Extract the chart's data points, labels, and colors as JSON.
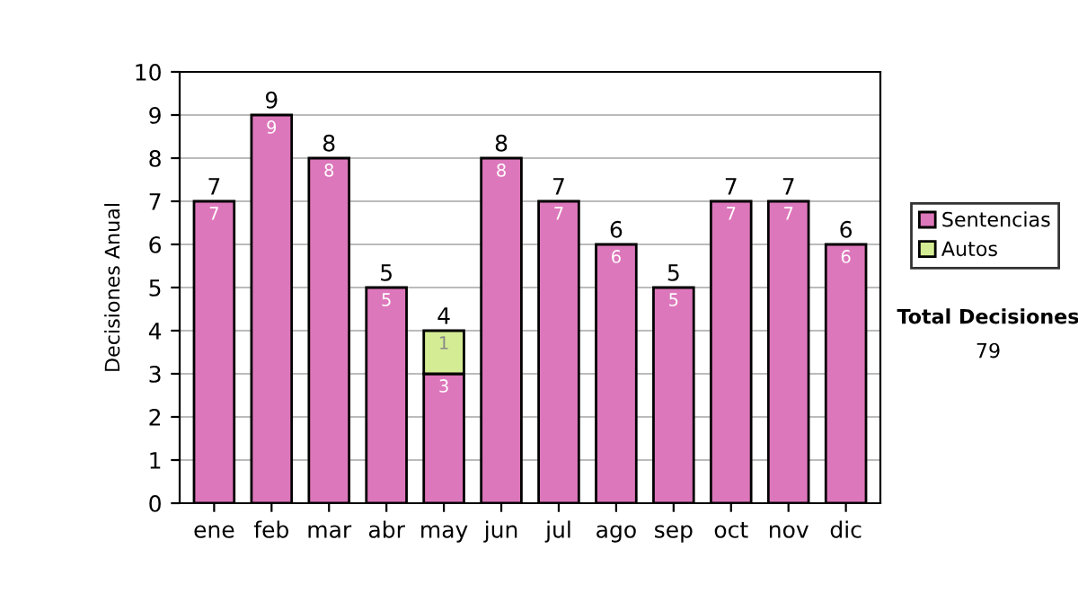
{
  "chart_data": {
    "type": "bar",
    "stacked": true,
    "ylabel": "Decisiones Anual",
    "categories": [
      "ene",
      "feb",
      "mar",
      "abr",
      "may",
      "jun",
      "jul",
      "ago",
      "sep",
      "oct",
      "nov",
      "dic"
    ],
    "series": [
      {
        "name": "Sentencias",
        "color": "#dd77bb",
        "values": [
          7,
          9,
          8,
          5,
          3,
          8,
          7,
          6,
          5,
          7,
          7,
          6
        ],
        "value_labels": [
          "7",
          "9",
          "8",
          "5",
          "3",
          "8",
          "7",
          "6",
          "5",
          "7",
          "7",
          "6"
        ]
      },
      {
        "name": "Autos",
        "color": "#d4ec94",
        "values": [
          null,
          null,
          null,
          null,
          1,
          null,
          null,
          null,
          null,
          null,
          null,
          null
        ],
        "value_labels": [
          null,
          null,
          null,
          null,
          "1",
          null,
          null,
          null,
          null,
          null,
          null,
          null
        ]
      }
    ],
    "totals": [
      "7",
      "9",
      "8",
      "5",
      "4",
      "8",
      "7",
      "6",
      "5",
      "7",
      "7",
      "6"
    ],
    "ylim": [
      0,
      10
    ],
    "yticks": [
      0,
      1,
      2,
      3,
      4,
      5,
      6,
      7,
      8,
      9,
      10
    ],
    "grid": "y",
    "legend": "right",
    "annotations": [
      "Total Decisiones",
      "79"
    ]
  }
}
